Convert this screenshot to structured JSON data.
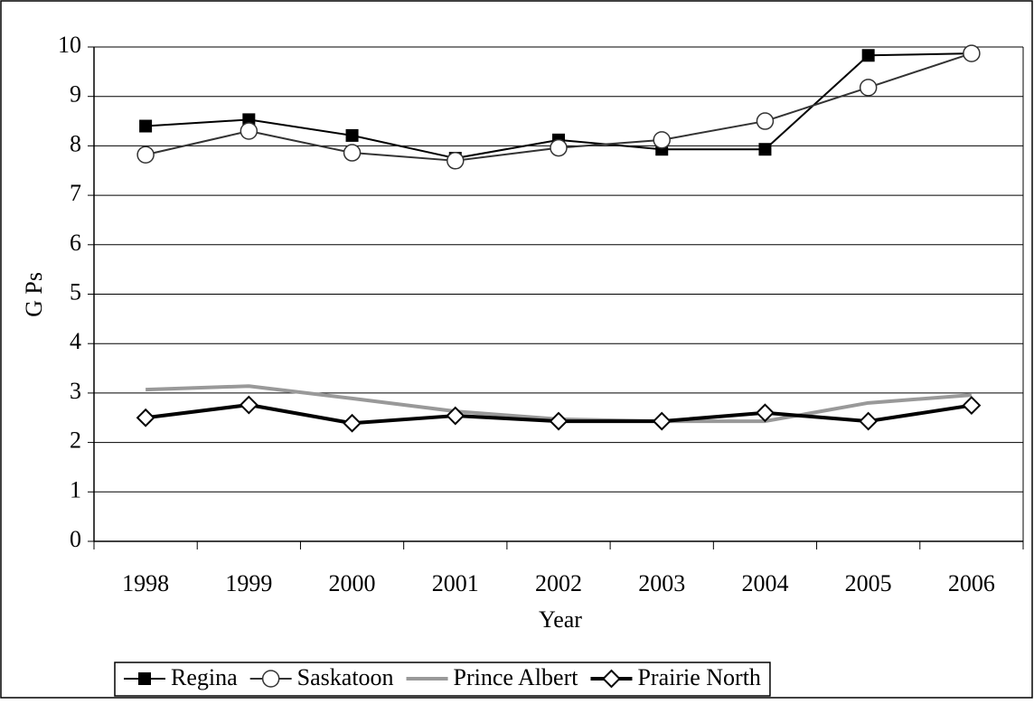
{
  "chart_data": {
    "type": "line",
    "x_label": "Year",
    "y_label": "G Ps",
    "categories": [
      "1998",
      "1999",
      "2000",
      "2001",
      "2002",
      "2003",
      "2004",
      "2005",
      "2006"
    ],
    "ylim": [
      0,
      10
    ],
    "yticks": [
      0,
      1,
      2,
      3,
      4,
      5,
      6,
      7,
      8,
      9,
      10
    ],
    "grid": true,
    "legend": "bottom",
    "series": [
      {
        "name": "Regina",
        "color": "#000000",
        "marker": "square",
        "line_width": 2,
        "values": [
          8.4,
          8.53,
          8.21,
          7.75,
          8.12,
          7.93,
          7.93,
          9.83,
          9.87
        ]
      },
      {
        "name": "Saskatoon",
        "color": "#333333",
        "marker": "circle",
        "line_width": 2,
        "values": [
          7.82,
          8.3,
          7.86,
          7.7,
          7.96,
          8.12,
          8.5,
          9.18,
          9.87
        ]
      },
      {
        "name": "Prince Albert",
        "color": "#999999",
        "marker": "none",
        "line_width": 4,
        "values": [
          3.07,
          3.14,
          2.89,
          2.63,
          2.47,
          2.43,
          2.43,
          2.8,
          2.96
        ]
      },
      {
        "name": "Prairie North",
        "color": "#000000",
        "marker": "diamond",
        "line_width": 4,
        "values": [
          2.5,
          2.76,
          2.39,
          2.54,
          2.43,
          2.43,
          2.6,
          2.43,
          2.75
        ]
      }
    ]
  }
}
